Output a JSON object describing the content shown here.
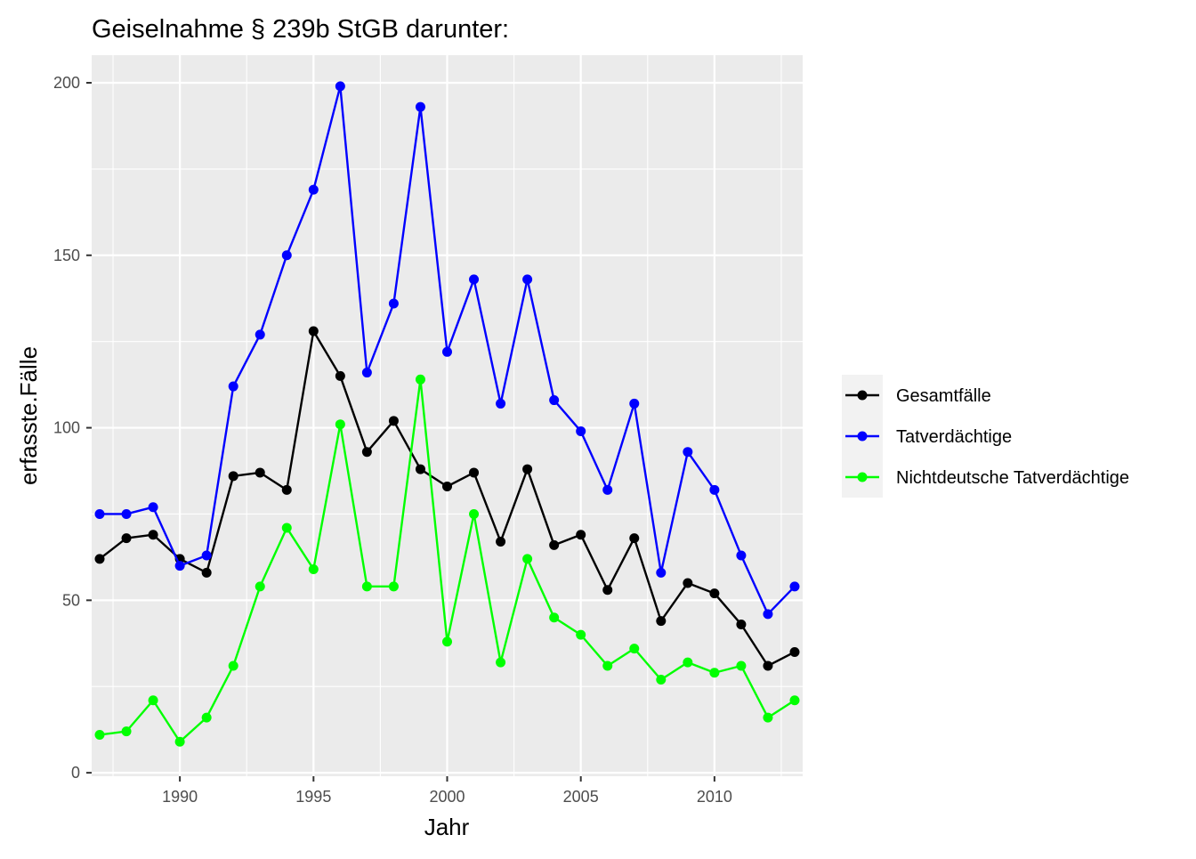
{
  "chart_data": {
    "type": "line",
    "title": "Geiselnahme § 239b StGB darunter:",
    "xlabel": "Jahr",
    "ylabel": "erfasste.Fälle",
    "xlim": [
      1986.7,
      2013.3
    ],
    "ylim": [
      -1,
      208
    ],
    "xticks": [
      1990,
      1995,
      2000,
      2005,
      2010
    ],
    "xtick_labels": [
      "1990",
      "1995",
      "2000",
      "2005",
      "2010"
    ],
    "yticks": [
      0,
      50,
      100,
      150,
      200
    ],
    "ytick_labels": [
      "0",
      "50",
      "100",
      "150",
      "200"
    ],
    "grid": true,
    "legend_position": "right",
    "x": [
      1987,
      1988,
      1989,
      1990,
      1991,
      1992,
      1993,
      1994,
      1995,
      1996,
      1997,
      1998,
      1999,
      2000,
      2001,
      2002,
      2003,
      2004,
      2005,
      2006,
      2007,
      2008,
      2009,
      2010,
      2011,
      2012,
      2013
    ],
    "series": [
      {
        "name": "Gesamtfälle",
        "color": "#000000",
        "values": [
          62,
          68,
          69,
          62,
          58,
          86,
          87,
          82,
          128,
          115,
          93,
          102,
          88,
          83,
          87,
          67,
          88,
          66,
          69,
          53,
          68,
          44,
          55,
          52,
          43,
          31,
          35
        ]
      },
      {
        "name": "Tatverdächtige",
        "color": "#0000ff",
        "values": [
          75,
          75,
          77,
          60,
          63,
          112,
          127,
          150,
          169,
          199,
          116,
          136,
          193,
          122,
          143,
          107,
          143,
          108,
          99,
          82,
          107,
          58,
          93,
          82,
          63,
          46,
          54
        ]
      },
      {
        "name": "Nichtdeutsche Tatverdächtige",
        "color": "#00ff00",
        "values": [
          11,
          12,
          21,
          9,
          16,
          31,
          54,
          71,
          59,
          101,
          54,
          54,
          114,
          38,
          75,
          32,
          62,
          45,
          40,
          31,
          36,
          27,
          32,
          29,
          31,
          16,
          21
        ]
      }
    ]
  }
}
